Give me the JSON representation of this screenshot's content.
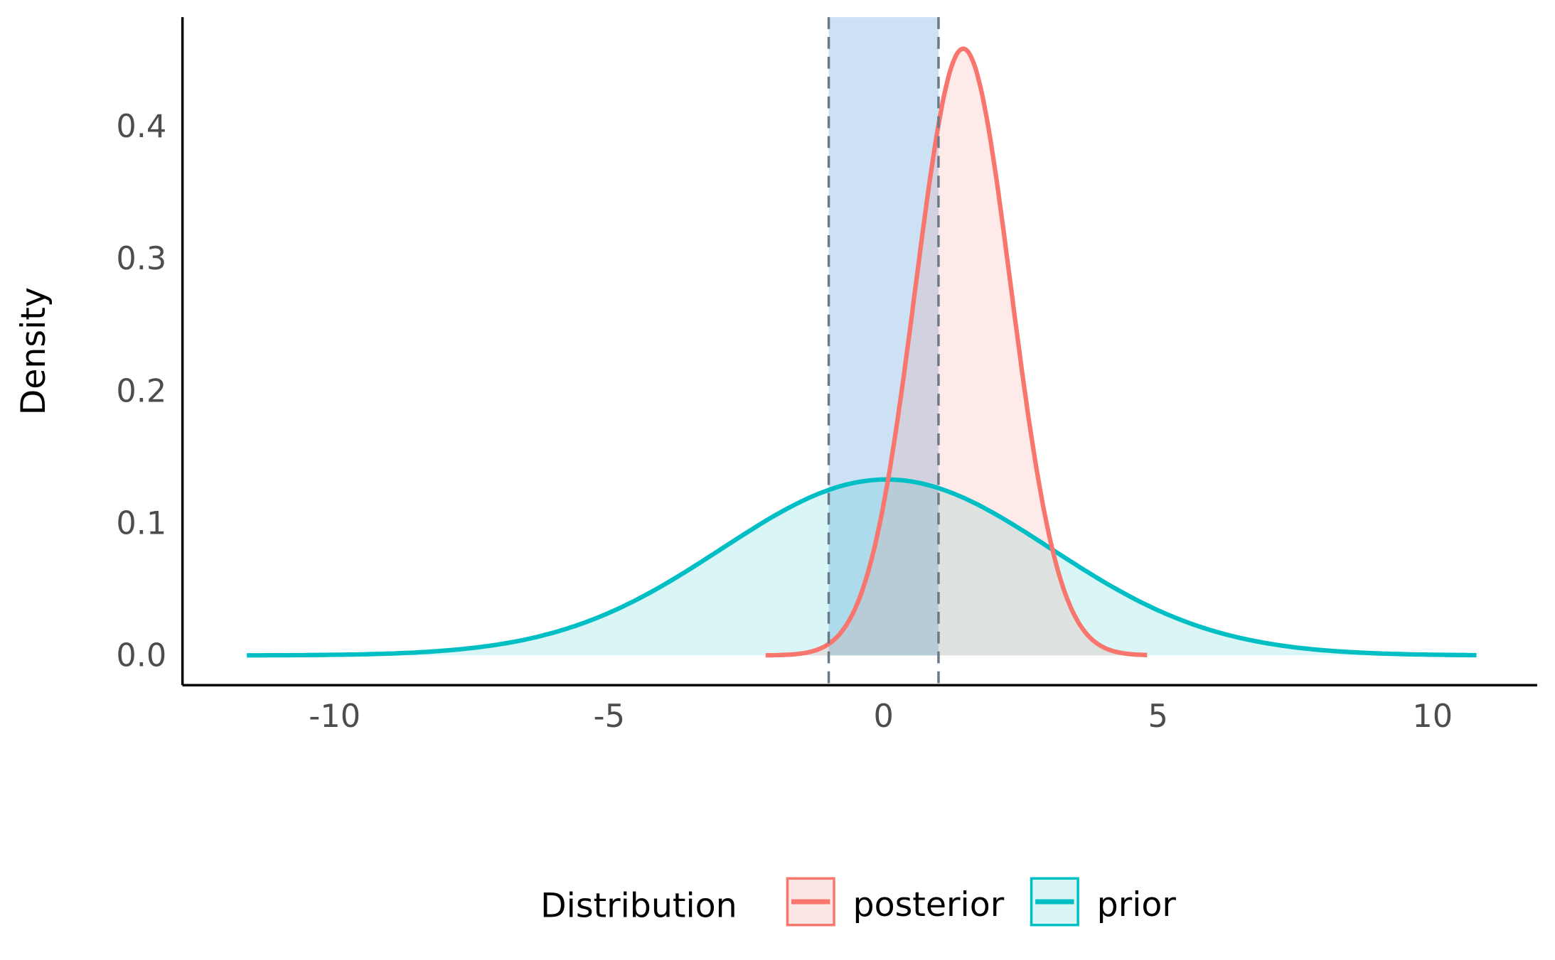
{
  "chart_data": {
    "type": "area",
    "title": "",
    "xlabel": "",
    "ylabel": "Density",
    "xlim": [
      -12.75,
      11.95
    ],
    "ylim": [
      -0.022,
      0.482
    ],
    "x_ticks": [
      -10,
      -5,
      0,
      5,
      10
    ],
    "x_tick_labels": [
      "-10",
      "-5",
      "0",
      "5",
      "10"
    ],
    "y_ticks": [
      0.0,
      0.1,
      0.2,
      0.3,
      0.4
    ],
    "y_tick_labels": [
      "0.0",
      "0.1",
      "0.2",
      "0.3",
      "0.4"
    ],
    "grid": false,
    "interval": {
      "from": -1,
      "to": 1,
      "color": "#cce1f4",
      "line_color": "#6c7a86"
    },
    "series": [
      {
        "name": "posterior",
        "distribution": "normal",
        "mean": 1.45,
        "sd": 0.87,
        "x_range": [
          -2.15,
          4.8
        ],
        "peak_density": 0.46,
        "color": "#F8766D",
        "fill": "#F8766D"
      },
      {
        "name": "prior",
        "distribution": "normal",
        "mean": 0.05,
        "sd": 3.0,
        "x_range": [
          -11.6,
          10.8
        ],
        "peak_density": 0.133,
        "color": "#00BFC4",
        "fill": "#00BFC4"
      }
    ],
    "legend": {
      "title": "Distribution",
      "position": "bottom",
      "entries": [
        "posterior",
        "prior"
      ]
    }
  }
}
